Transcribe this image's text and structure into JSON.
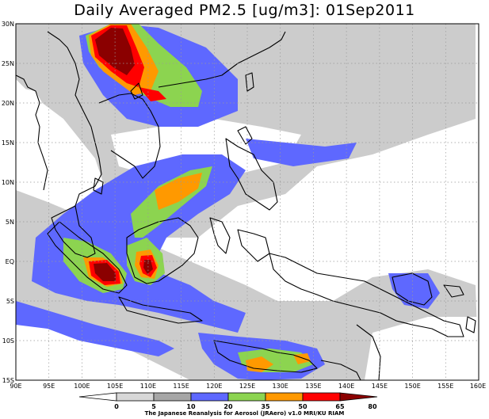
{
  "title": "Daily Averaged PM2.5 [ug/m3]: 01Sep2011",
  "credit": "The Japanese Reanalysis for Aerosol (JRAero) v1.0 MRI/KU RIAM",
  "map": {
    "lon_range": [
      90,
      160
    ],
    "lat_range": [
      -15,
      30
    ],
    "lon_ticks": [
      "90E",
      "95E",
      "100E",
      "105E",
      "110E",
      "115E",
      "120E",
      "125E",
      "130E",
      "135E",
      "140E",
      "145E",
      "150E",
      "155E",
      "160E"
    ],
    "lat_ticks": [
      "30N",
      "25N",
      "20N",
      "15N",
      "10N",
      "5N",
      "EQ",
      "5S",
      "10S",
      "15S"
    ],
    "grid": "dotted"
  },
  "colorbar": {
    "labels": [
      "0",
      "5",
      "10",
      "20",
      "35",
      "50",
      "65",
      "80"
    ],
    "colors": [
      "#ffffff",
      "#d8d8d8",
      "#a6a6a6",
      "#5e68ff",
      "#8cd450",
      "#ff9900",
      "#ff0000",
      "#8b0000"
    ]
  }
}
